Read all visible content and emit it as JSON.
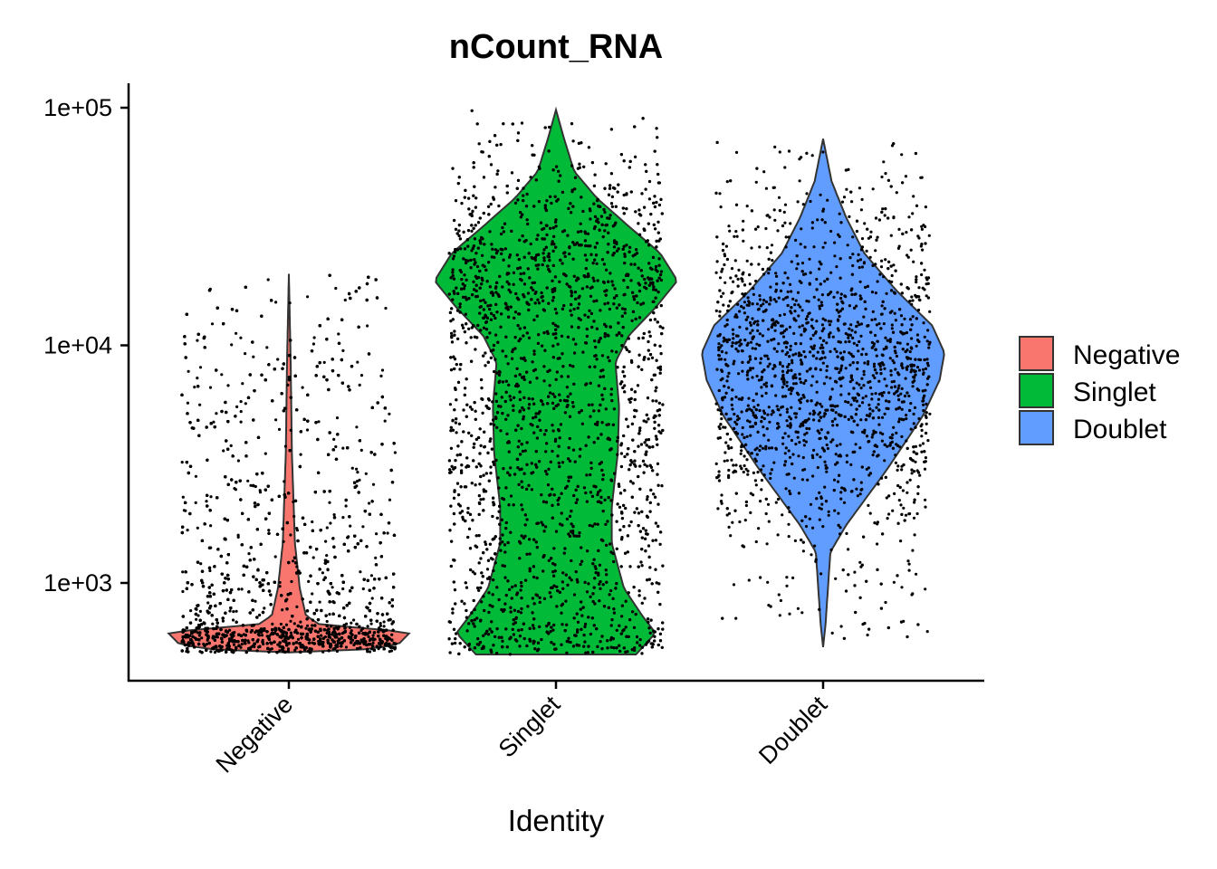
{
  "chart_data": {
    "type": "violin",
    "title": "nCount_RNA",
    "xlabel": "Identity",
    "ylabel": "",
    "y_scale": "log10",
    "ylim": [
      430,
      120000
    ],
    "y_ticks": [
      {
        "value": 1000,
        "label": "1e+03"
      },
      {
        "value": 10000,
        "label": "1e+04"
      },
      {
        "value": 100000,
        "label": "1e+05"
      }
    ],
    "categories": [
      "Negative",
      "Singlet",
      "Doublet"
    ],
    "grid": false,
    "legend_position": "right",
    "jittered_points": true,
    "series": [
      {
        "name": "Negative",
        "color": "#F8766D",
        "min": 510,
        "max": 20000,
        "density_profile": [
          [
            510,
            0
          ],
          [
            515,
            0.5
          ],
          [
            550,
            0.9
          ],
          [
            620,
            1.0
          ],
          [
            660,
            0.4
          ],
          [
            670,
            0.25
          ],
          [
            730,
            0.14
          ],
          [
            950,
            0.09
          ],
          [
            1470,
            0.05
          ],
          [
            3540,
            0.025
          ],
          [
            8500,
            0.015
          ],
          [
            20000,
            0
          ]
        ]
      },
      {
        "name": "Singlet",
        "color": "#00BA38",
        "min": 500,
        "max": 98000,
        "density_profile": [
          [
            500,
            0.66
          ],
          [
            615,
            0.82
          ],
          [
            730,
            0.71
          ],
          [
            950,
            0.56
          ],
          [
            1470,
            0.46
          ],
          [
            2090,
            0.46
          ],
          [
            3540,
            0.51
          ],
          [
            5490,
            0.52
          ],
          [
            8500,
            0.49
          ],
          [
            11000,
            0.6
          ],
          [
            14400,
            0.82
          ],
          [
            18700,
            1.0
          ],
          [
            24400,
            0.86
          ],
          [
            31700,
            0.6
          ],
          [
            41500,
            0.34
          ],
          [
            54000,
            0.15
          ],
          [
            76000,
            0.06
          ],
          [
            98000,
            0
          ]
        ]
      },
      {
        "name": "Doublet",
        "color": "#619CFF",
        "min": 537,
        "max": 74000,
        "density_profile": [
          [
            537,
            0
          ],
          [
            670,
            0.02
          ],
          [
            950,
            0.04
          ],
          [
            1350,
            0.06
          ],
          [
            1750,
            0.19
          ],
          [
            2970,
            0.52
          ],
          [
            5030,
            0.82
          ],
          [
            7130,
            0.96
          ],
          [
            9300,
            1.0
          ],
          [
            12100,
            0.9
          ],
          [
            17100,
            0.6
          ],
          [
            24400,
            0.34
          ],
          [
            34500,
            0.19
          ],
          [
            49000,
            0.07
          ],
          [
            74000,
            0
          ]
        ]
      }
    ]
  }
}
